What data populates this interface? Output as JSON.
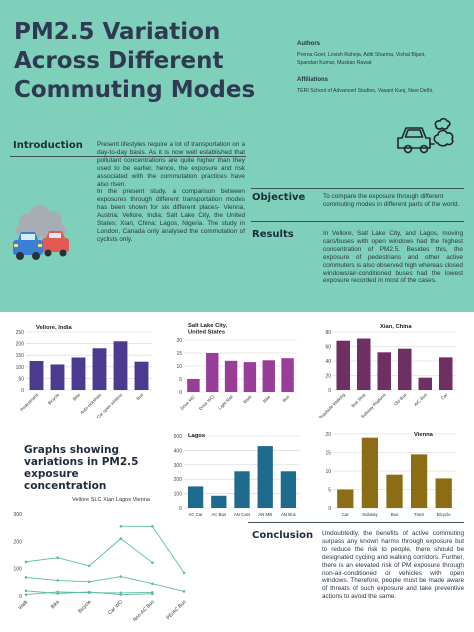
{
  "header": {
    "title": "PM2.5 Variation Across Different Commuting Modes",
    "authors_heading": "Authors",
    "authors_line1": "Prerna Goel, Lovish Raheja, Aditi Sharma, Vishal Bijani,",
    "authors_line2": "Spandan Kumar, Muskan Rawat",
    "affiliations_heading": "Affiliations",
    "affiliations": "TERI School of Advanced Studies, Vasant Kunj, New Delhi."
  },
  "introduction": {
    "heading": "Introduction",
    "para1": "Present lifestyles require a lot of transportation on a day-to-day basis. As it is now well established that pollutant concentrations are quite higher than they used to be earlier, hence, the exposure and risk associated with the commutation practices have also risen.",
    "para2": "In the present study, a comparison between exposures through different transportation modes has been shown for six different places- Vienna, Austria; Vellore, India; Salt Lake City, the United States; Xian, China; Lagos, Nigeria. The study in London, Canada only analysed the commutation of cyclists only."
  },
  "objective": {
    "heading": "Objective",
    "text": "To compare the exposure through different commuting modes in different parts of the world."
  },
  "results": {
    "heading": "Results",
    "text": "In Vellore, Salt Lake City, and Lagos, moving cars/buses with open windows had the highest concentration of PM2.5. Besides this, the exposure of pedestrians and other active commuters is also observed high whereas closed windows/air-conditioned buses had the lowest exposure recorded in most of the cases."
  },
  "graphs_title": "Graphs showing variations in PM2.5 exposure concentration",
  "conclusion": {
    "heading": "Conclusion",
    "text": "Undoubtedly, the benefits of active commuting surpass any known harms through exposure but to reduce the risk to people, there should be designated cycling and walking corridors. Further, there is an elevated risk of PM exposure through non-air-conditioned or vehicles with open windows. Therefore, people must be made aware of threats of such exposure and take preventive actions to avoid the same."
  },
  "colors": {
    "background_top": "#7fd0bb",
    "vellore": "#4b3a8f",
    "slc": "#9a3d98",
    "xian": "#6e2f63",
    "lagos": "#1f6b8d",
    "vienna": "#8a6d15",
    "line": "#5cbba6"
  },
  "icons": [
    "car-emission-icon",
    "traffic-pollution-icon"
  ],
  "chart_data": [
    {
      "type": "bar",
      "title": "Vellore, India",
      "categories": [
        "Pedestrians",
        "Bicycle",
        "Bike",
        "Auto-rickshaw",
        "Car open window",
        "Bus"
      ],
      "values": [
        125,
        110,
        140,
        180,
        210,
        122
      ],
      "ylim": [
        0,
        250
      ],
      "yticks": [
        0,
        50,
        100,
        150,
        200,
        250
      ],
      "grid": true
    },
    {
      "type": "bar",
      "title": "Salt Lake City, United States",
      "categories": [
        "Drive WC",
        "Drive WO",
        "Light Rail",
        "Walk",
        "Bike",
        "Bus"
      ],
      "values": [
        5,
        15,
        12,
        11.5,
        12.2,
        13
      ],
      "ylim": [
        0,
        20
      ],
      "yticks": [
        0,
        5,
        10,
        15,
        20
      ],
      "grid": true
    },
    {
      "type": "bar",
      "title": "Xian, China",
      "categories": [
        "Roadside Walking",
        "Bus Stop",
        "Subway Platform",
        "Old Bus",
        "A/C Bus",
        "Car"
      ],
      "values": [
        68,
        71,
        52,
        57,
        17,
        45
      ],
      "ylim": [
        0,
        80
      ],
      "yticks": [
        0,
        20,
        40,
        60,
        80
      ],
      "grid": true
    },
    {
      "type": "bar",
      "title": "Lagos",
      "categories": [
        "AC Car",
        "AC Bus",
        "AN Cars",
        "AN MB",
        "AN Bus"
      ],
      "values": [
        150,
        85,
        255,
        430,
        255
      ],
      "ylim": [
        0,
        500
      ],
      "yticks": [
        0,
        100,
        200,
        300,
        400,
        500
      ],
      "grid": true
    },
    {
      "type": "bar",
      "title": "Vienna",
      "categories": [
        "Car",
        "Subway",
        "Bus",
        "Tram",
        "Bicycle"
      ],
      "values": [
        5,
        19,
        9,
        14.5,
        8
      ],
      "ylim": [
        0,
        20
      ],
      "yticks": [
        0,
        5,
        10,
        15,
        20
      ],
      "grid": true
    },
    {
      "type": "line",
      "categories": [
        "Walk",
        "Bike",
        "Bicycle",
        "Car WO",
        "Non-AC Bus",
        "PE/AC Bus"
      ],
      "legend": "Vellore SLC Xian Lagos Vienna",
      "ylim": [
        0,
        300
      ],
      "yticks": [
        0,
        100,
        200,
        300
      ],
      "grid": false,
      "series": [
        {
          "values": [
            125,
            140,
            110,
            210,
            122,
            null
          ]
        },
        {
          "values": [
            5,
            15,
            12,
            11.5,
            13,
            null
          ]
        },
        {
          "values": [
            68,
            57,
            52,
            71,
            45,
            17
          ]
        },
        {
          "values": [
            null,
            null,
            null,
            255,
            255,
            85
          ]
        },
        {
          "values": [
            19,
            9,
            14.5,
            5,
            8,
            null
          ]
        }
      ]
    }
  ]
}
